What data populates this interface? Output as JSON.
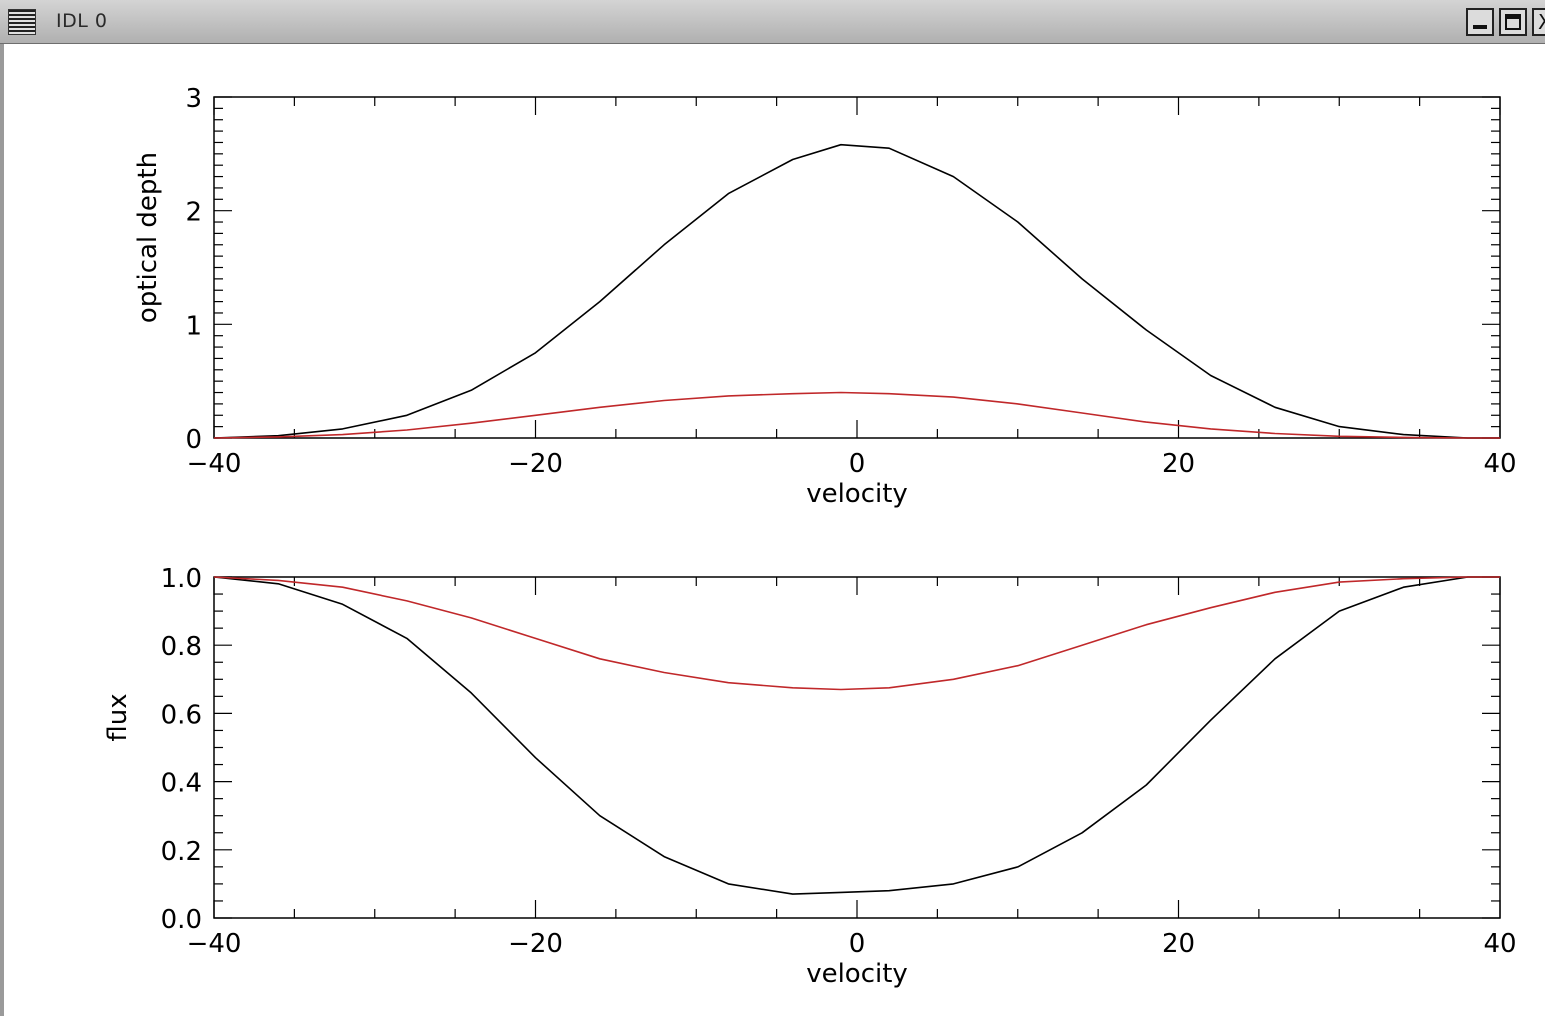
{
  "window": {
    "title": "IDL 0",
    "menu_icon": "window-menu-icon",
    "minimize_icon": "minimize-icon",
    "maximize_icon": "maximize-icon",
    "close_icon": "close-icon",
    "close_glyph": "X"
  },
  "colors": {
    "black_series": "#000000",
    "red_series": "#c0282a",
    "axis": "#000000"
  },
  "chart_data": [
    {
      "type": "line",
      "title": "",
      "xlabel": "velocity",
      "ylabel": "optical depth",
      "xlim": [
        -40,
        40
      ],
      "ylim": [
        0,
        3
      ],
      "xticks": [
        -40,
        -20,
        0,
        20,
        40
      ],
      "xtick_labels": [
        "−40",
        "−20",
        "0",
        "20",
        "40"
      ],
      "yticks": [
        0,
        1,
        2,
        3
      ],
      "ytick_labels": [
        "0",
        "1",
        "2",
        "3"
      ],
      "grid": false,
      "series": [
        {
          "color": "#000000",
          "x": [
            -40,
            -36,
            -32,
            -28,
            -24,
            -20,
            -16,
            -12,
            -8,
            -4,
            -1,
            2,
            6,
            10,
            14,
            18,
            22,
            26,
            30,
            34,
            38,
            40
          ],
          "y": [
            0.0,
            0.02,
            0.08,
            0.2,
            0.42,
            0.75,
            1.2,
            1.7,
            2.15,
            2.45,
            2.58,
            2.55,
            2.3,
            1.9,
            1.4,
            0.95,
            0.55,
            0.27,
            0.1,
            0.03,
            0.0,
            0.0
          ]
        },
        {
          "color": "#c0282a",
          "x": [
            -40,
            -36,
            -32,
            -28,
            -24,
            -20,
            -16,
            -12,
            -8,
            -4,
            -1,
            2,
            6,
            10,
            14,
            18,
            22,
            26,
            30,
            34,
            38,
            40
          ],
          "y": [
            0.0,
            0.01,
            0.03,
            0.07,
            0.13,
            0.2,
            0.27,
            0.33,
            0.37,
            0.39,
            0.4,
            0.39,
            0.36,
            0.3,
            0.22,
            0.14,
            0.08,
            0.04,
            0.015,
            0.005,
            0.0,
            0.0
          ]
        }
      ]
    },
    {
      "type": "line",
      "title": "",
      "xlabel": "velocity",
      "ylabel": "flux",
      "xlim": [
        -40,
        40
      ],
      "ylim": [
        0,
        1
      ],
      "xticks": [
        -40,
        -20,
        0,
        20,
        40
      ],
      "xtick_labels": [
        "−40",
        "−20",
        "0",
        "20",
        "40"
      ],
      "yticks": [
        0,
        0.2,
        0.4,
        0.6,
        0.8,
        1.0
      ],
      "ytick_labels": [
        "0.0",
        "0.2",
        "0.4",
        "0.6",
        "0.8",
        "1.0"
      ],
      "grid": false,
      "series": [
        {
          "color": "#000000",
          "x": [
            -40,
            -36,
            -32,
            -28,
            -24,
            -20,
            -16,
            -12,
            -8,
            -4,
            -1,
            2,
            6,
            10,
            14,
            18,
            22,
            26,
            30,
            34,
            38,
            40
          ],
          "y": [
            1.0,
            0.98,
            0.92,
            0.82,
            0.66,
            0.47,
            0.3,
            0.18,
            0.1,
            0.07,
            0.075,
            0.08,
            0.1,
            0.15,
            0.25,
            0.39,
            0.58,
            0.76,
            0.9,
            0.97,
            1.0,
            1.0
          ]
        },
        {
          "color": "#c0282a",
          "x": [
            -40,
            -36,
            -32,
            -28,
            -24,
            -20,
            -16,
            -12,
            -8,
            -4,
            -1,
            2,
            6,
            10,
            14,
            18,
            22,
            26,
            30,
            34,
            38,
            40
          ],
          "y": [
            1.0,
            0.99,
            0.97,
            0.93,
            0.88,
            0.82,
            0.76,
            0.72,
            0.69,
            0.675,
            0.67,
            0.675,
            0.7,
            0.74,
            0.8,
            0.86,
            0.91,
            0.955,
            0.985,
            0.995,
            1.0,
            1.0
          ]
        }
      ]
    }
  ]
}
